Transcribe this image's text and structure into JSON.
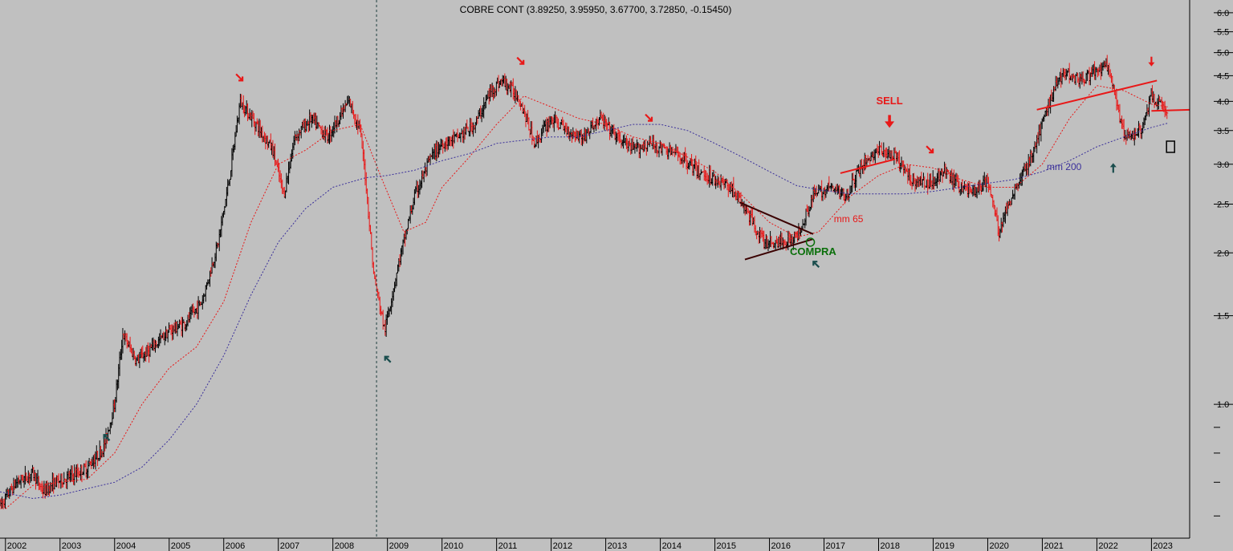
{
  "chart_data": {
    "type": "candlestick",
    "title": "COBRE CONT (3.89250, 3.95950, 3.67700, 3.72850, -0.15450)",
    "scale": "log",
    "ylim": [
      0.55,
      6.2
    ],
    "y_ticks": [
      {
        "value": 6.0,
        "label": "6.0"
      },
      {
        "value": 5.5,
        "label": "5.5"
      },
      {
        "value": 5.0,
        "label": "5.0"
      },
      {
        "value": 4.5,
        "label": "4.5"
      },
      {
        "value": 4.0,
        "label": "4.0"
      },
      {
        "value": 3.5,
        "label": "3.5"
      },
      {
        "value": 3.0,
        "label": "3.0"
      },
      {
        "value": 2.5,
        "label": "2.5"
      },
      {
        "value": 2.0,
        "label": "2.0"
      },
      {
        "value": 1.5,
        "label": "1.5"
      },
      {
        "value": 1.0,
        "label": "1.0"
      }
    ],
    "y_minor_ticks": [
      0.9,
      0.8,
      0.7,
      0.6
    ],
    "xlim": [
      2001.9,
      2023.7
    ],
    "x_ticks": [
      "2002",
      "2003",
      "2004",
      "2005",
      "2006",
      "2007",
      "2008",
      "2009",
      "2010",
      "2011",
      "2012",
      "2013",
      "2014",
      "2015",
      "2016",
      "2017",
      "2018",
      "2019",
      "2020",
      "2021",
      "2022",
      "2023"
    ],
    "price_path": [
      [
        2001.9,
        0.63
      ],
      [
        2002.2,
        0.7
      ],
      [
        2002.5,
        0.73
      ],
      [
        2002.7,
        0.67
      ],
      [
        2002.9,
        0.7
      ],
      [
        2003.2,
        0.72
      ],
      [
        2003.5,
        0.75
      ],
      [
        2003.8,
        0.82
      ],
      [
        2004.0,
        1.0
      ],
      [
        2004.15,
        1.38
      ],
      [
        2004.4,
        1.22
      ],
      [
        2004.7,
        1.3
      ],
      [
        2005.0,
        1.4
      ],
      [
        2005.3,
        1.45
      ],
      [
        2005.6,
        1.6
      ],
      [
        2005.9,
        2.1
      ],
      [
        2006.1,
        2.8
      ],
      [
        2006.3,
        4.0
      ],
      [
        2006.6,
        3.6
      ],
      [
        2006.9,
        3.2
      ],
      [
        2007.1,
        2.6
      ],
      [
        2007.3,
        3.4
      ],
      [
        2007.6,
        3.7
      ],
      [
        2007.9,
        3.4
      ],
      [
        2008.1,
        3.7
      ],
      [
        2008.3,
        4.0
      ],
      [
        2008.5,
        3.5
      ],
      [
        2008.6,
        2.8
      ],
      [
        2008.75,
        1.8
      ],
      [
        2008.95,
        1.4
      ],
      [
        2009.2,
        1.9
      ],
      [
        2009.5,
        2.6
      ],
      [
        2009.8,
        3.1
      ],
      [
        2010.0,
        3.3
      ],
      [
        2010.3,
        3.4
      ],
      [
        2010.6,
        3.6
      ],
      [
        2010.9,
        4.2
      ],
      [
        2011.1,
        4.4
      ],
      [
        2011.4,
        4.1
      ],
      [
        2011.7,
        3.3
      ],
      [
        2012.0,
        3.7
      ],
      [
        2012.3,
        3.5
      ],
      [
        2012.6,
        3.4
      ],
      [
        2012.9,
        3.7
      ],
      [
        2013.2,
        3.4
      ],
      [
        2013.5,
        3.2
      ],
      [
        2013.8,
        3.3
      ],
      [
        2014.1,
        3.2
      ],
      [
        2014.4,
        3.1
      ],
      [
        2014.7,
        2.9
      ],
      [
        2015.0,
        2.8
      ],
      [
        2015.3,
        2.7
      ],
      [
        2015.6,
        2.4
      ],
      [
        2015.9,
        2.1
      ],
      [
        2016.2,
        2.1
      ],
      [
        2016.5,
        2.15
      ],
      [
        2016.8,
        2.6
      ],
      [
        2017.1,
        2.7
      ],
      [
        2017.4,
        2.6
      ],
      [
        2017.7,
        3.0
      ],
      [
        2018.0,
        3.2
      ],
      [
        2018.3,
        3.1
      ],
      [
        2018.6,
        2.8
      ],
      [
        2018.9,
        2.75
      ],
      [
        2019.2,
        2.9
      ],
      [
        2019.5,
        2.7
      ],
      [
        2019.8,
        2.65
      ],
      [
        2020.0,
        2.8
      ],
      [
        2020.2,
        2.2
      ],
      [
        2020.5,
        2.7
      ],
      [
        2020.8,
        3.1
      ],
      [
        2021.0,
        3.6
      ],
      [
        2021.2,
        4.2
      ],
      [
        2021.4,
        4.6
      ],
      [
        2021.7,
        4.4
      ],
      [
        2022.0,
        4.6
      ],
      [
        2022.2,
        4.7
      ],
      [
        2022.5,
        3.4
      ],
      [
        2022.8,
        3.5
      ],
      [
        2023.0,
        4.1
      ],
      [
        2023.2,
        3.9
      ],
      [
        2023.3,
        3.73
      ]
    ],
    "series": [
      {
        "name": "mm 65",
        "color": "#e81818",
        "points": [
          [
            2002.0,
            0.62
          ],
          [
            2002.5,
            0.69
          ],
          [
            2003.0,
            0.7
          ],
          [
            2003.5,
            0.71
          ],
          [
            2004.0,
            0.8
          ],
          [
            2004.5,
            1.0
          ],
          [
            2005.0,
            1.18
          ],
          [
            2005.5,
            1.3
          ],
          [
            2006.0,
            1.6
          ],
          [
            2006.5,
            2.3
          ],
          [
            2007.0,
            3.0
          ],
          [
            2007.5,
            3.2
          ],
          [
            2008.0,
            3.5
          ],
          [
            2008.5,
            3.6
          ],
          [
            2008.9,
            2.8
          ],
          [
            2009.3,
            2.2
          ],
          [
            2009.7,
            2.3
          ],
          [
            2010.0,
            2.7
          ],
          [
            2010.5,
            3.1
          ],
          [
            2011.0,
            3.6
          ],
          [
            2011.5,
            4.1
          ],
          [
            2012.0,
            3.9
          ],
          [
            2012.5,
            3.7
          ],
          [
            2013.0,
            3.6
          ],
          [
            2013.5,
            3.4
          ],
          [
            2014.0,
            3.3
          ],
          [
            2014.5,
            3.1
          ],
          [
            2015.0,
            2.9
          ],
          [
            2015.5,
            2.6
          ],
          [
            2016.0,
            2.3
          ],
          [
            2016.5,
            2.15
          ],
          [
            2016.9,
            2.2
          ],
          [
            2017.5,
            2.6
          ],
          [
            2018.0,
            2.85
          ],
          [
            2018.5,
            3.0
          ],
          [
            2019.0,
            2.95
          ],
          [
            2019.5,
            2.8
          ],
          [
            2020.0,
            2.7
          ],
          [
            2020.5,
            2.7
          ],
          [
            2021.0,
            3.0
          ],
          [
            2021.5,
            3.7
          ],
          [
            2022.0,
            4.3
          ],
          [
            2022.5,
            4.2
          ],
          [
            2023.0,
            3.95
          ],
          [
            2023.3,
            3.9
          ]
        ]
      },
      {
        "name": "mm 200",
        "color": "#3a2f9a",
        "points": [
          [
            2001.9,
            0.67
          ],
          [
            2002.5,
            0.65
          ],
          [
            2003.0,
            0.66
          ],
          [
            2003.5,
            0.68
          ],
          [
            2004.0,
            0.7
          ],
          [
            2004.5,
            0.75
          ],
          [
            2005.0,
            0.85
          ],
          [
            2005.5,
            1.0
          ],
          [
            2006.0,
            1.25
          ],
          [
            2006.5,
            1.65
          ],
          [
            2007.0,
            2.1
          ],
          [
            2007.5,
            2.45
          ],
          [
            2008.0,
            2.7
          ],
          [
            2008.6,
            2.82
          ],
          [
            2009.0,
            2.85
          ],
          [
            2009.5,
            2.92
          ],
          [
            2010.0,
            3.05
          ],
          [
            2010.5,
            3.15
          ],
          [
            2011.0,
            3.3
          ],
          [
            2011.5,
            3.35
          ],
          [
            2012.0,
            3.4
          ],
          [
            2012.5,
            3.4
          ],
          [
            2013.0,
            3.5
          ],
          [
            2013.5,
            3.6
          ],
          [
            2014.0,
            3.6
          ],
          [
            2014.5,
            3.5
          ],
          [
            2015.0,
            3.3
          ],
          [
            2015.5,
            3.1
          ],
          [
            2016.0,
            2.9
          ],
          [
            2016.5,
            2.72
          ],
          [
            2017.0,
            2.66
          ],
          [
            2017.5,
            2.62
          ],
          [
            2018.0,
            2.62
          ],
          [
            2018.5,
            2.62
          ],
          [
            2019.0,
            2.65
          ],
          [
            2019.5,
            2.7
          ],
          [
            2020.0,
            2.75
          ],
          [
            2020.5,
            2.8
          ],
          [
            2021.0,
            2.9
          ],
          [
            2021.5,
            3.05
          ],
          [
            2022.0,
            3.25
          ],
          [
            2022.5,
            3.4
          ],
          [
            2023.0,
            3.55
          ],
          [
            2023.3,
            3.62
          ]
        ]
      }
    ],
    "trendlines": [
      {
        "name": "triangle-upper",
        "color": "#3a0000",
        "points": [
          [
            2015.45,
            2.52
          ],
          [
            2016.8,
            2.18
          ]
        ]
      },
      {
        "name": "triangle-lower",
        "color": "#3a0000",
        "points": [
          [
            2015.55,
            1.94
          ],
          [
            2016.8,
            2.13
          ]
        ]
      },
      {
        "name": "trendline-2017",
        "color": "#e81818",
        "points": [
          [
            2017.3,
            2.88
          ],
          [
            2018.3,
            3.07
          ]
        ]
      },
      {
        "name": "trendline-2021",
        "color": "#e81818",
        "points": [
          [
            2020.9,
            3.85
          ],
          [
            2023.1,
            4.4
          ]
        ]
      },
      {
        "name": "support-2023",
        "color": "#e81818",
        "points": [
          [
            2023.0,
            3.83
          ],
          [
            2023.7,
            3.85
          ]
        ]
      }
    ],
    "annotations": [
      {
        "text": "SELL",
        "x": 2018.2,
        "y": 3.95,
        "color": "#e81818"
      },
      {
        "text": "COMPRA",
        "x": 2016.8,
        "y": 1.98,
        "color": "#0a6f0a"
      },
      {
        "text": "mm 65",
        "x": 2017.45,
        "y": 2.3,
        "color": "#e81818"
      },
      {
        "text": "mm 200",
        "x": 2021.4,
        "y": 2.92,
        "color": "#3a2f9a"
      }
    ],
    "markers": [
      {
        "name": "sell-arrow-2006",
        "shape": "diag-down",
        "x": 2006.3,
        "y": 4.45,
        "color": "#e81818"
      },
      {
        "name": "sell-arrow-2011",
        "shape": "diag-down",
        "x": 2011.45,
        "y": 4.8,
        "color": "#e81818"
      },
      {
        "name": "sell-arrow-2013",
        "shape": "diag-down",
        "x": 2013.8,
        "y": 3.7,
        "color": "#e81818"
      },
      {
        "name": "sell-arrow-2018",
        "shape": "down-bold",
        "x": 2018.2,
        "y": 3.65,
        "color": "#e81818"
      },
      {
        "name": "sell-arrow-2019",
        "shape": "diag-down",
        "x": 2018.95,
        "y": 3.2,
        "color": "#e81818"
      },
      {
        "name": "sell-arrow-2023",
        "shape": "down",
        "x": 2023.0,
        "y": 4.8,
        "color": "#e81818"
      },
      {
        "name": "buy-arrow-2003",
        "shape": "diag-up",
        "x": 2003.85,
        "y": 0.86,
        "color": "#1a4d4d"
      },
      {
        "name": "buy-arrow-2009",
        "shape": "diag-up",
        "x": 2009.0,
        "y": 1.23,
        "color": "#1a4d4d"
      },
      {
        "name": "buy-arrow-2016",
        "shape": "diag-up",
        "x": 2016.85,
        "y": 1.9,
        "color": "#1a4d4d"
      },
      {
        "name": "buy-arrow-2022",
        "shape": "up",
        "x": 2022.3,
        "y": 2.95,
        "color": "#1a4d4d"
      }
    ],
    "vertical_marker": {
      "x": 2008.8,
      "style": "dashed"
    },
    "end_box": {
      "x": 2023.35,
      "y": 3.25
    },
    "colors": {
      "background": "#c0c0c0",
      "up_bar": "#000000",
      "down_bar": "#e81818",
      "axis": "#000000"
    },
    "grid": false
  }
}
